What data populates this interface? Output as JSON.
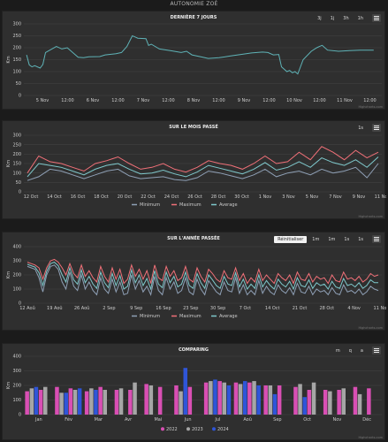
{
  "app_title": "AUTONOMIE ZOÉ",
  "colors": {
    "min": "#8fa0b6",
    "max": "#f07078",
    "avg": "#7fc9cc",
    "single": "#5fb3b7",
    "c2022": "#d94fb4",
    "c2023": "#a6a6a6",
    "c2024": "#2f55d8"
  },
  "panels": [
    {
      "id": "p1",
      "title": "DERNIÈRE 7 JOURS",
      "buttons": [
        "3j",
        "1j",
        "3h",
        "1h"
      ]
    },
    {
      "id": "p2",
      "title": "SUR LE MOIS PASSÉ",
      "buttons": [
        "1s"
      ]
    },
    {
      "id": "p3",
      "title": "SUR L'ANNÉE PASSÉE",
      "buttons": [
        "Réinitialiser",
        "1m",
        "1m",
        "1s",
        "1s"
      ]
    },
    {
      "id": "p4",
      "title": "COMPARING",
      "buttons": [
        "m",
        "q",
        "a"
      ]
    }
  ],
  "credit": "Highcharts.com",
  "chart_data": [
    {
      "id": "p1",
      "type": "line",
      "title": "DERNIÈRE 7 JOURS",
      "ylabel": "Km",
      "ylim": [
        0,
        300
      ],
      "yticks": [
        0,
        50,
        100,
        150,
        200,
        250,
        300
      ],
      "xticks": [
        "5 Nov",
        "12:00",
        "6 Nov",
        "12:00",
        "7 Nov",
        "12:00",
        "8 Nov",
        "12:00",
        "9 Nov",
        "12:00",
        "10 Nov",
        "12:00",
        "11 Nov",
        "12:00"
      ],
      "xrange": [
        0,
        6.6
      ],
      "series": [
        {
          "color": "#5fb3b7",
          "x": [
            0.05,
            0.1,
            0.15,
            0.2,
            0.3,
            0.35,
            0.4,
            0.6,
            0.7,
            0.8,
            1.0,
            1.1,
            1.2,
            1.4,
            1.5,
            1.7,
            1.8,
            1.9,
            2.0,
            2.05,
            2.1,
            2.25,
            2.3,
            2.35,
            2.5,
            2.7,
            2.9,
            3.0,
            3.1,
            3.3,
            3.4,
            3.6,
            3.8,
            4.0,
            4.2,
            4.4,
            4.5,
            4.6,
            4.7,
            4.75,
            4.8,
            4.85,
            4.9,
            4.95,
            5.0,
            5.05,
            5.15,
            5.3,
            5.4,
            5.45,
            5.5,
            5.6,
            5.8,
            6.0,
            6.2,
            6.45
          ],
          "y": [
            170,
            128,
            120,
            125,
            115,
            130,
            180,
            205,
            195,
            200,
            160,
            158,
            162,
            163,
            170,
            175,
            180,
            205,
            250,
            245,
            240,
            238,
            210,
            215,
            195,
            188,
            180,
            185,
            170,
            160,
            155,
            158,
            165,
            172,
            178,
            182,
            180,
            170,
            172,
            120,
            110,
            100,
            105,
            95,
            100,
            90,
            150,
            185,
            200,
            205,
            210,
            190,
            185,
            188,
            190,
            190
          ]
        }
      ]
    },
    {
      "id": "p2",
      "type": "line",
      "title": "SUR LE MOIS PASSÉ",
      "ylabel": "Km",
      "ylim": [
        0,
        300
      ],
      "yticks": [
        0,
        50,
        100,
        150,
        200,
        250,
        300
      ],
      "xticks": [
        "12 Oct",
        "14 Oct",
        "16 Oct",
        "18 Oct",
        "20 Oct",
        "22 Oct",
        "24 Oct",
        "26 Oct",
        "28 Oct",
        "30 Oct",
        "1 Nov",
        "3 Nov",
        "5 Nov",
        "7 Nov",
        "9 Nov",
        "11 Nov"
      ],
      "xrange": [
        0,
        31
      ],
      "legend": [
        "Minimum",
        "Maximum",
        "Average"
      ],
      "series": [
        {
          "name": "Minimum",
          "color": "#8fa0b6",
          "y": [
            60,
            80,
            120,
            110,
            90,
            70,
            90,
            110,
            120,
            85,
            70,
            75,
            80,
            65,
            60,
            75,
            110,
            100,
            85,
            70,
            90,
            120,
            80,
            100,
            110,
            90,
            120,
            100,
            110,
            130,
            75,
            150
          ]
        },
        {
          "name": "Maximum",
          "color": "#f07078",
          "y": [
            100,
            190,
            160,
            150,
            130,
            110,
            150,
            165,
            185,
            150,
            120,
            130,
            150,
            120,
            105,
            130,
            165,
            150,
            140,
            120,
            150,
            190,
            150,
            160,
            210,
            170,
            240,
            210,
            170,
            220,
            180,
            210
          ]
        },
        {
          "name": "Average",
          "color": "#7fc9cc",
          "y": [
            80,
            150,
            140,
            130,
            110,
            90,
            120,
            140,
            150,
            120,
            95,
            100,
            115,
            95,
            80,
            105,
            140,
            125,
            110,
            95,
            120,
            155,
            115,
            130,
            160,
            130,
            180,
            155,
            140,
            170,
            130,
            185
          ]
        }
      ]
    },
    {
      "id": "p3",
      "type": "line",
      "title": "SUR L'ANNÉE PASSÉE",
      "ylabel": "Km",
      "ylim": [
        0,
        400
      ],
      "yticks": [
        0,
        100,
        200,
        300,
        400
      ],
      "xticks": [
        "12 Aoû",
        "19 Aoû",
        "26 Aoû",
        "2 Sep",
        "9 Sep",
        "16 Sep",
        "23 Sep",
        "30 Sep",
        "7 Oct",
        "14 Oct",
        "21 Oct",
        "28 Oct",
        "4 Nov",
        "11 Nov"
      ],
      "xrange": [
        0,
        91
      ],
      "legend": [
        "Minimum",
        "Maximum",
        "Average"
      ],
      "series": [
        {
          "name": "Minimum",
          "color": "#8fa0b6",
          "y": [
            260,
            250,
            240,
            180,
            80,
            200,
            260,
            270,
            240,
            150,
            100,
            220,
            120,
            90,
            200,
            100,
            150,
            90,
            60,
            180,
            100,
            70,
            170,
            80,
            150,
            60,
            70,
            200,
            100,
            160,
            80,
            120,
            60,
            190,
            90,
            60,
            180,
            100,
            150,
            70,
            90,
            180,
            80,
            60,
            170,
            100,
            60,
            160,
            120,
            80,
            60,
            150,
            90,
            80,
            180,
            70,
            130,
            60,
            90,
            60,
            160,
            70,
            120,
            80,
            60,
            130,
            90,
            70,
            110,
            60,
            140,
            80,
            70,
            120,
            60,
            100,
            80,
            90,
            60,
            110,
            70,
            60,
            130,
            80,
            90,
            70,
            100,
            60,
            80,
            120,
            100,
            90
          ]
        },
        {
          "name": "Maximum",
          "color": "#f07078",
          "y": [
            290,
            280,
            270,
            250,
            170,
            250,
            300,
            310,
            290,
            250,
            200,
            280,
            210,
            180,
            270,
            190,
            230,
            180,
            150,
            260,
            190,
            150,
            250,
            170,
            240,
            140,
            170,
            270,
            190,
            240,
            170,
            230,
            140,
            270,
            180,
            160,
            260,
            190,
            230,
            160,
            180,
            260,
            170,
            150,
            250,
            190,
            150,
            240,
            210,
            170,
            150,
            230,
            180,
            170,
            250,
            160,
            210,
            140,
            180,
            150,
            240,
            160,
            200,
            170,
            140,
            210,
            180,
            160,
            200,
            140,
            220,
            170,
            160,
            210,
            150,
            190,
            170,
            180,
            140,
            200,
            160,
            150,
            220,
            170,
            180,
            160,
            190,
            150,
            170,
            210,
            190,
            200
          ]
        },
        {
          "name": "Average",
          "color": "#7fc9cc",
          "y": [
            275,
            265,
            255,
            215,
            125,
            225,
            280,
            290,
            265,
            200,
            150,
            250,
            165,
            135,
            235,
            145,
            190,
            135,
            105,
            220,
            145,
            110,
            210,
            125,
            195,
            100,
            120,
            235,
            145,
            200,
            125,
            175,
            100,
            230,
            135,
            110,
            220,
            145,
            190,
            115,
            135,
            220,
            125,
            105,
            210,
            145,
            105,
            200,
            165,
            125,
            105,
            190,
            135,
            125,
            215,
            115,
            170,
            100,
            135,
            105,
            200,
            115,
            160,
            125,
            100,
            170,
            135,
            115,
            155,
            100,
            180,
            125,
            115,
            165,
            105,
            145,
            125,
            135,
            100,
            155,
            115,
            105,
            175,
            125,
            135,
            115,
            145,
            105,
            125,
            165,
            145,
            145
          ]
        }
      ]
    },
    {
      "id": "p4",
      "type": "bar",
      "title": "COMPARING",
      "ylabel": "Km",
      "ylim": [
        0,
        400
      ],
      "yticks": [
        0,
        100,
        200,
        300,
        400
      ],
      "categories": [
        "Jan",
        "Fév",
        "Mar",
        "Avr",
        "Mai",
        "Jun",
        "Jul",
        "Aoû",
        "Sep",
        "Oct",
        "Nov",
        "Déc"
      ],
      "legend": [
        "2022",
        "2023",
        "2024"
      ],
      "series": [
        {
          "name": "2022",
          "color": "#d94fb4",
          "values": [
            [
              160,
              170
            ],
            [
              190,
              180
            ],
            [
              160,
              190
            ],
            [
              170,
              170
            ],
            [
              210,
              190
            ],
            [
              200,
              190
            ],
            [
              220,
              230
            ],
            [
              220,
              220
            ],
            [
              200,
              200
            ],
            [
              190,
              170
            ],
            [
              170,
              170
            ],
            [
              190,
              180
            ]
          ]
        },
        {
          "name": "2023",
          "color": "#a6a6a6",
          "values": [
            [
              180,
              190
            ],
            [
              150,
              170
            ],
            [
              180,
              170
            ],
            [
              180,
              220
            ],
            [
              200,
              0
            ],
            [
              160,
              0
            ],
            [
              230,
              220
            ],
            [
              210,
              230
            ],
            [
              200,
              0
            ],
            [
              210,
              220
            ],
            [
              160,
              180
            ],
            [
              140,
              0
            ]
          ]
        },
        {
          "name": "2024",
          "color": "#2f55d8",
          "values": [
            [
              190,
              0
            ],
            [
              150,
              180
            ],
            [
              170,
              0
            ],
            [
              0,
              0
            ],
            [
              0,
              0
            ],
            [
              320,
              0
            ],
            [
              240,
              200
            ],
            [
              230,
              200
            ],
            [
              140,
              0
            ],
            [
              120,
              0
            ],
            [
              0,
              0
            ],
            [
              0,
              0
            ]
          ]
        }
      ]
    }
  ]
}
